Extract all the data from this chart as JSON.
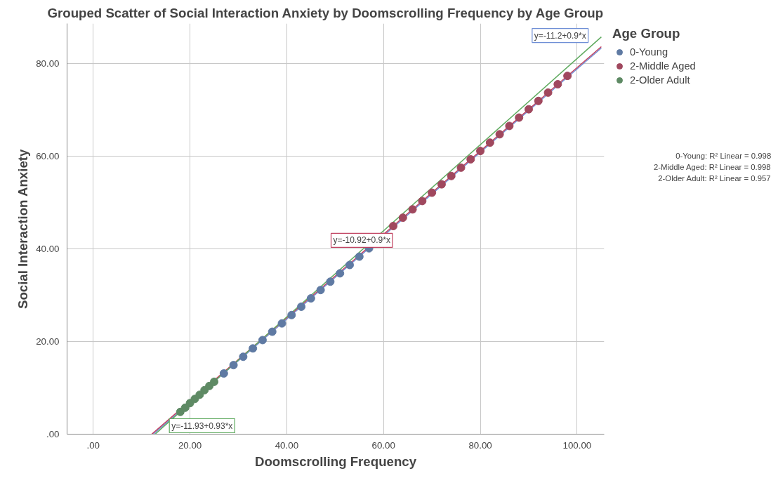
{
  "chart_data": {
    "type": "scatter",
    "title": "Grouped Scatter of Social Interaction Anxiety by Doomscrolling Frequency by Age Group",
    "xlabel": "Doomscrolling Frequency",
    "ylabel": "Social Interaction Anxiety",
    "legend_title": "Age Group",
    "xlim": [
      -5.4,
      105.6
    ],
    "ylim": [
      0,
      88.6
    ],
    "xticks": [
      {
        "value": 0,
        "label": ".00"
      },
      {
        "value": 20,
        "label": "20.00"
      },
      {
        "value": 40,
        "label": "40.00"
      },
      {
        "value": 60,
        "label": "60.00"
      },
      {
        "value": 80,
        "label": "80.00"
      },
      {
        "value": 100,
        "label": "100.00"
      }
    ],
    "yticks": [
      {
        "value": 0,
        "label": ".00"
      },
      {
        "value": 20,
        "label": "20.00"
      },
      {
        "value": 40,
        "label": "40.00"
      },
      {
        "value": 60,
        "label": "60.00"
      },
      {
        "value": 80,
        "label": "80.00"
      }
    ],
    "grid": true,
    "legend": "top right",
    "marker": "circle",
    "series": [
      {
        "type": "line",
        "marker": "none",
        "color": "#6f8fd6",
        "x": [
          12.4,
          105
        ],
        "values": [
          0,
          83.3
        ]
      },
      {
        "type": "line",
        "marker": "none",
        "color": "#c0405f",
        "x": [
          12.1,
          105
        ],
        "values": [
          0,
          83.6
        ]
      },
      {
        "type": "line",
        "marker": "none",
        "color": "#5faa5f",
        "x": [
          12.8,
          105
        ],
        "values": [
          0,
          85.7
        ]
      },
      {
        "name": "0-Young",
        "color": "#5f7aa3",
        "x": [
          27,
          29,
          31,
          33,
          35,
          37,
          39,
          41,
          43,
          45,
          47,
          49,
          51,
          53,
          55,
          57
        ],
        "values": [
          13.1,
          14.9,
          16.7,
          18.5,
          20.3,
          22.1,
          23.9,
          25.7,
          27.5,
          29.3,
          31.1,
          32.9,
          34.7,
          36.5,
          38.3,
          40.1
        ]
      },
      {
        "name": "2-Middle Aged",
        "color": "#a0485e",
        "x": [
          62,
          64,
          66,
          68,
          70,
          72,
          74,
          76,
          78,
          80,
          82,
          84,
          86,
          88,
          90,
          92,
          94,
          96,
          98
        ],
        "values": [
          44.9,
          46.7,
          48.5,
          50.3,
          52.1,
          53.9,
          55.7,
          57.5,
          59.3,
          61.1,
          62.9,
          64.7,
          66.5,
          68.3,
          70.1,
          71.9,
          73.7,
          75.5,
          77.3
        ]
      },
      {
        "name": "2-Older Adult",
        "color": "#5e8a64",
        "x": [
          18,
          19,
          20,
          21,
          22,
          23,
          24,
          25
        ],
        "values": [
          4.8,
          5.7,
          6.7,
          7.6,
          8.5,
          9.5,
          10.4,
          11.3
        ]
      }
    ],
    "annotations": [
      "y=-11.2+0.9*x",
      "y=-10.92+0.9*x",
      "y=-11.93+0.93*x",
      "0-Young: R² Linear = 0.998",
      "2-Middle Aged: R² Linear = 0.998",
      "2-Older Adult: R² Linear = 0.957"
    ]
  }
}
